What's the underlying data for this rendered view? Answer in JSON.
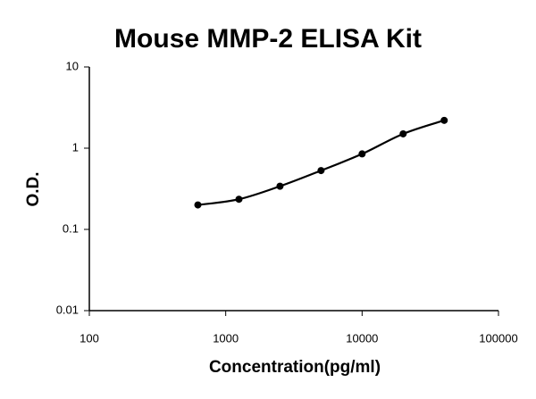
{
  "chart_data": {
    "type": "scatter",
    "title": "Mouse MMP-2 ELISA Kit",
    "x_label": "Concentration(pg/ml)",
    "y_label": "O.D.",
    "x": [
      625,
      1250,
      2500,
      5000,
      10000,
      20000,
      40000
    ],
    "values": [
      0.2,
      0.235,
      0.34,
      0.53,
      0.85,
      1.5,
      2.2
    ],
    "color": "#000000",
    "curve": "smooth",
    "xscale": "log",
    "yscale": "log",
    "xlim": [
      100,
      100000
    ],
    "xticks": [
      100,
      1000,
      10000,
      100000
    ],
    "ylim": [
      0.01,
      10
    ],
    "yticks": [
      0.01,
      0.1,
      1,
      10
    ],
    "grid": false
  }
}
